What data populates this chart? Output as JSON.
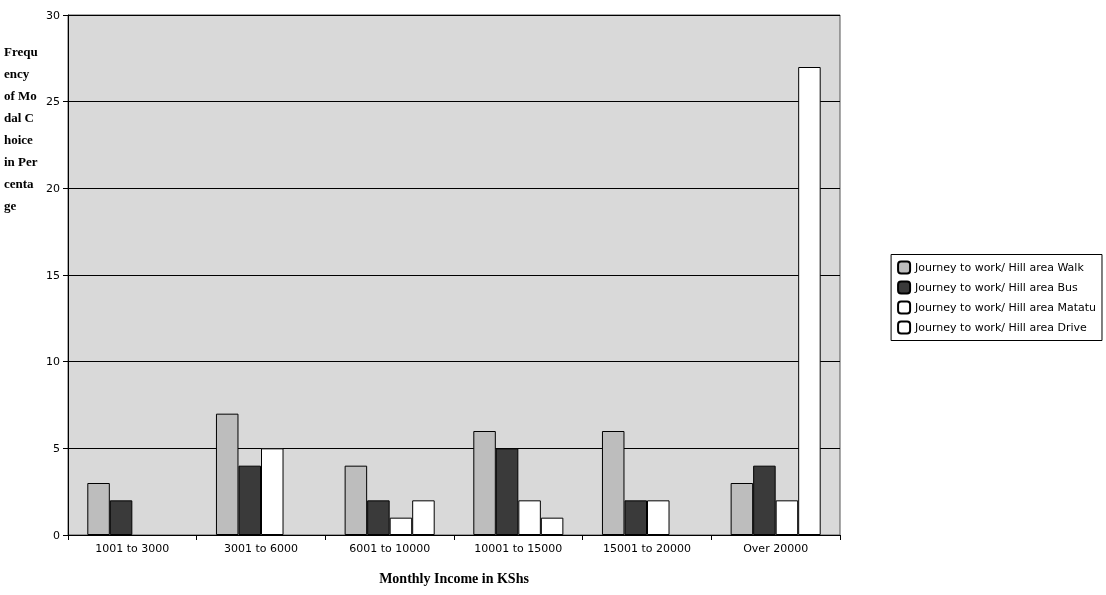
{
  "chart_data": {
    "type": "bar",
    "xlabel": "Monthly Income in KShs",
    "ylabel": "Frequency of Modal Choice in Percentage",
    "categories": [
      "1001 to 3000",
      "3001 to 6000",
      "6001 to 10000",
      "10001 to 15000",
      "15001 to 20000",
      "Over 20000"
    ],
    "series": [
      {
        "name": "Journey to work/ Hill area Walk",
        "color": "#bdbdbd",
        "values": [
          3,
          7,
          4,
          6,
          6,
          3
        ]
      },
      {
        "name": "Journey to work/ Hill area Bus",
        "color": "#3a3a3a",
        "values": [
          2,
          4,
          2,
          5,
          2,
          4
        ]
      },
      {
        "name": "Journey to work/ Hill area Matatu",
        "color": "#ffffff",
        "values": [
          0,
          5,
          1,
          2,
          2,
          2
        ]
      },
      {
        "name": "Journey to work/ Hill area Drive",
        "color": "#ffffff",
        "values": [
          0,
          0,
          2,
          1,
          0,
          27
        ]
      }
    ],
    "ylim": [
      0,
      30
    ],
    "yticks": [
      0,
      5,
      10,
      15,
      20,
      25,
      30
    ],
    "grid": "y",
    "legend": "right"
  }
}
